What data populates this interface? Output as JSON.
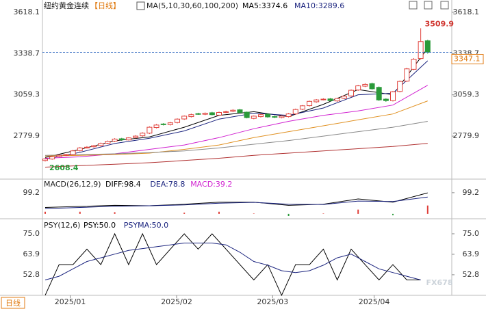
{
  "chart_data": [
    {
      "type": "candlestick",
      "title": "纽约黄金连续",
      "period": "【日线】",
      "ma_label": "MA(5,10,30,60,100,200)",
      "legend": [
        "MA5:3374.6",
        "MA10:3289.6"
      ],
      "open": [
        2615,
        2625,
        2642,
        2650,
        2655,
        2682,
        2700,
        2708,
        2716,
        2732,
        2746,
        2762,
        2754,
        2770,
        2782,
        2800,
        2838,
        2862,
        2858,
        2872,
        2896,
        2912,
        2932,
        2928,
        2938,
        2922,
        2942,
        2948,
        2958,
        2942,
        2900,
        2912,
        2928,
        2912,
        2906,
        2912,
        2930,
        2962,
        2986,
        3012,
        3028,
        3032,
        3018,
        3036,
        3052,
        3092,
        3118,
        3135,
        3110,
        3030,
        3020,
        3082,
        3152,
        3232,
        3305,
        3425
      ],
      "high": [
        2630,
        2645,
        2655,
        2660,
        2688,
        2706,
        2712,
        2720,
        2736,
        2750,
        2766,
        2768,
        2772,
        2786,
        2806,
        2846,
        2862,
        2868,
        2876,
        2900,
        2920,
        2932,
        2938,
        2940,
        2944,
        2946,
        2952,
        2962,
        2964,
        2946,
        2920,
        2930,
        2934,
        2918,
        2920,
        2936,
        2966,
        2990,
        3020,
        3030,
        3036,
        3038,
        3040,
        3056,
        3096,
        3126,
        3138,
        3142,
        3116,
        3036,
        3086,
        3156,
        3242,
        3308,
        3509.9,
        3432
      ],
      "low": [
        2608.4,
        2620,
        2636,
        2645,
        2650,
        2676,
        2696,
        2702,
        2710,
        2726,
        2740,
        2748,
        2750,
        2764,
        2776,
        2794,
        2832,
        2852,
        2852,
        2866,
        2890,
        2906,
        2924,
        2922,
        2920,
        2918,
        2936,
        2942,
        2934,
        2900,
        2894,
        2906,
        2904,
        2902,
        2900,
        2906,
        2924,
        2956,
        2980,
        3006,
        3022,
        3014,
        3012,
        3030,
        3046,
        3086,
        3112,
        3094,
        3018,
        3012,
        3014,
        3076,
        3146,
        3226,
        3298,
        3338
      ],
      "close": [
        2625,
        2640,
        2650,
        2655,
        2680,
        2700,
        2705,
        2715,
        2730,
        2745,
        2760,
        2755,
        2768,
        2780,
        2800,
        2840,
        2855,
        2860,
        2870,
        2895,
        2915,
        2925,
        2930,
        2935,
        2925,
        2940,
        2945,
        2955,
        2940,
        2905,
        2915,
        2925,
        2910,
        2908,
        2915,
        2930,
        2960,
        2985,
        3015,
        3025,
        3030,
        3020,
        3035,
        3050,
        3090,
        3120,
        3130,
        3100,
        3025,
        3020,
        3080,
        3150,
        3235,
        3300,
        3420,
        3347.1
      ],
      "up_color": "#e0403a",
      "down_color": "#2a9a3a",
      "ylim": [
        2489,
        3701
      ],
      "yticks": [
        2779.9,
        3059.3,
        3338.7,
        3618.1
      ],
      "lines": {
        "x": [
          0,
          5,
          10,
          15,
          20,
          25,
          30,
          35,
          40,
          45,
          50,
          55
        ],
        "series": [
          {
            "name": "MA5",
            "color": "#000000",
            "values": [
              2635,
              2690,
              2748,
              2775,
              2840,
              2920,
              2945,
              2912,
              2995,
              3095,
              3060,
              3374.6
            ]
          },
          {
            "name": "MA10",
            "color": "#1a237e",
            "values": [
              2625,
              2670,
              2730,
              2765,
              2815,
              2895,
              2935,
              2920,
              2970,
              3060,
              3070,
              3289.6
            ]
          },
          {
            "name": "MA30",
            "color": "#d020d0",
            "values": [
              2630,
              2640,
              2660,
              2690,
              2720,
              2770,
              2830,
              2880,
              2920,
              2950,
              2990,
              3124
            ]
          },
          {
            "name": "MA60",
            "color": "#e09020",
            "values": [
              2645,
              2650,
              2655,
              2665,
              2690,
              2720,
              2770,
              2810,
              2850,
              2890,
              2930,
              3018
            ]
          },
          {
            "name": "MA100",
            "color": "#888888",
            "values": [
              2650,
              2655,
              2660,
              2668,
              2680,
              2700,
              2725,
              2750,
              2780,
              2810,
              2840,
              2880
            ]
          },
          {
            "name": "MA200",
            "color": "#b03030",
            "values": [
              2570,
              2580,
              2590,
              2600,
              2615,
              2630,
              2650,
              2665,
              2680,
              2695,
              2710,
              2731
            ]
          }
        ]
      }
    },
    {
      "type": "macd",
      "title": "MACD(26,12,9)",
      "legend": [
        "DIFF:98.4",
        "DEA:78.8",
        "MACD:39.2"
      ],
      "legend_colors": [
        "#000000",
        "#1a237e",
        "#d020d0"
      ],
      "x": [
        0,
        5,
        10,
        15,
        20,
        25,
        30,
        35,
        40,
        45,
        50,
        55
      ],
      "series": [
        {
          "name": "DIFF",
          "color": "#000000",
          "values": [
            30,
            35,
            40,
            38,
            45,
            55,
            55,
            40,
            45,
            70,
            55,
            98.4
          ]
        },
        {
          "name": "DEA",
          "color": "#1a237e",
          "values": [
            25,
            30,
            36,
            38,
            42,
            50,
            54,
            45,
            44,
            60,
            58,
            78.8
          ]
        }
      ],
      "bars": {
        "up_color": "#e0403a",
        "down_color": "#2a9a3a",
        "values": [
          10,
          10,
          8,
          0,
          6,
          10,
          2,
          -10,
          2,
          20,
          -6,
          39.2
        ]
      },
      "ylim": [
        -10,
        150
      ],
      "yticks": [
        99.2
      ]
    },
    {
      "type": "psy",
      "title": "PSY(12,6)",
      "legend": [
        "PSY:50.0",
        "PSYMA:50.0"
      ],
      "legend_colors": [
        "#000000",
        "#1a237e"
      ],
      "x": [
        0,
        2,
        4,
        6,
        8,
        10,
        12,
        14,
        16,
        18,
        20,
        22,
        24,
        26,
        28,
        30,
        32,
        34,
        36,
        38,
        40,
        42,
        44,
        46,
        48,
        50,
        52,
        54
      ],
      "series": [
        {
          "name": "PSY",
          "color": "#000000",
          "values": [
            41.7,
            58.3,
            58.3,
            66.7,
            58.3,
            75,
            58.3,
            75,
            58.3,
            66.7,
            75,
            66.7,
            75,
            66.7,
            58.3,
            50,
            58.3,
            41.7,
            58.3,
            58.3,
            66.7,
            50,
            66.7,
            58.3,
            50,
            58.3,
            50,
            50
          ]
        },
        {
          "name": "PSYMA",
          "color": "#1a237e",
          "values": [
            50,
            52,
            56,
            60,
            62,
            64,
            66,
            67,
            68,
            69,
            70,
            70,
            70,
            69,
            65,
            60,
            58,
            55,
            54,
            55,
            58,
            62,
            64,
            60,
            56,
            54,
            52,
            50
          ]
        }
      ],
      "ylim": [
        42.4,
        82.4
      ],
      "yticks": [
        52.8,
        63.9,
        {
          "value": 75,
          "label": "75.0"
        }
      ]
    }
  ],
  "time_axis": {
    "ticks": [
      {
        "value": 3.6,
        "label": "2025/01"
      },
      {
        "value": 18.9,
        "label": "2025/02"
      },
      {
        "value": 32.7,
        "label": "2025/03"
      },
      {
        "value": 47.3,
        "label": "2025/04"
      }
    ]
  },
  "period_button": "日线",
  "watermark": "FX678"
}
